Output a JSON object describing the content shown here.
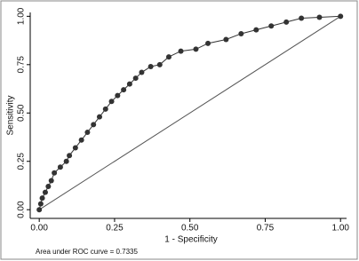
{
  "chart_data": {
    "type": "line",
    "xlabel": "1 - Specificity",
    "ylabel": "Sensitivity",
    "annotation": "Area under ROC curve = 0.7335",
    "x": [
      0,
      0.005,
      0.01,
      0.02,
      0.03,
      0.04,
      0.05,
      0.07,
      0.09,
      0.1,
      0.12,
      0.14,
      0.16,
      0.18,
      0.2,
      0.22,
      0.24,
      0.26,
      0.28,
      0.3,
      0.32,
      0.34,
      0.37,
      0.4,
      0.43,
      0.47,
      0.52,
      0.56,
      0.62,
      0.67,
      0.72,
      0.77,
      0.82,
      0.87,
      0.93,
      1
    ],
    "values": [
      0,
      0.03,
      0.06,
      0.09,
      0.12,
      0.15,
      0.19,
      0.22,
      0.25,
      0.28,
      0.32,
      0.36,
      0.4,
      0.44,
      0.48,
      0.52,
      0.56,
      0.59,
      0.62,
      0.65,
      0.68,
      0.71,
      0.74,
      0.75,
      0.79,
      0.82,
      0.83,
      0.86,
      0.88,
      0.91,
      0.93,
      0.95,
      0.97,
      0.99,
      0.995,
      1
    ],
    "color": "#333333",
    "reference_line": {
      "x": [
        0,
        1
      ],
      "values": [
        0,
        1
      ]
    },
    "xlim": [
      -0.03,
      1.02
    ],
    "ylim": [
      -0.045,
      1.02
    ],
    "xticks": [
      {
        "value": 0,
        "label": "0.00"
      },
      {
        "value": 0.25,
        "label": "0.25"
      },
      {
        "value": 0.5,
        "label": "0.50"
      },
      {
        "value": 0.75,
        "label": "0.75"
      },
      {
        "value": 1,
        "label": "1.00"
      }
    ],
    "yticks": [
      {
        "value": 0,
        "label": "0.00"
      },
      {
        "value": 0.25,
        "label": "0.25"
      },
      {
        "value": 0.5,
        "label": "0.50"
      },
      {
        "value": 0.75,
        "label": "0.75"
      },
      {
        "value": 1,
        "label": "1.00"
      }
    ]
  }
}
